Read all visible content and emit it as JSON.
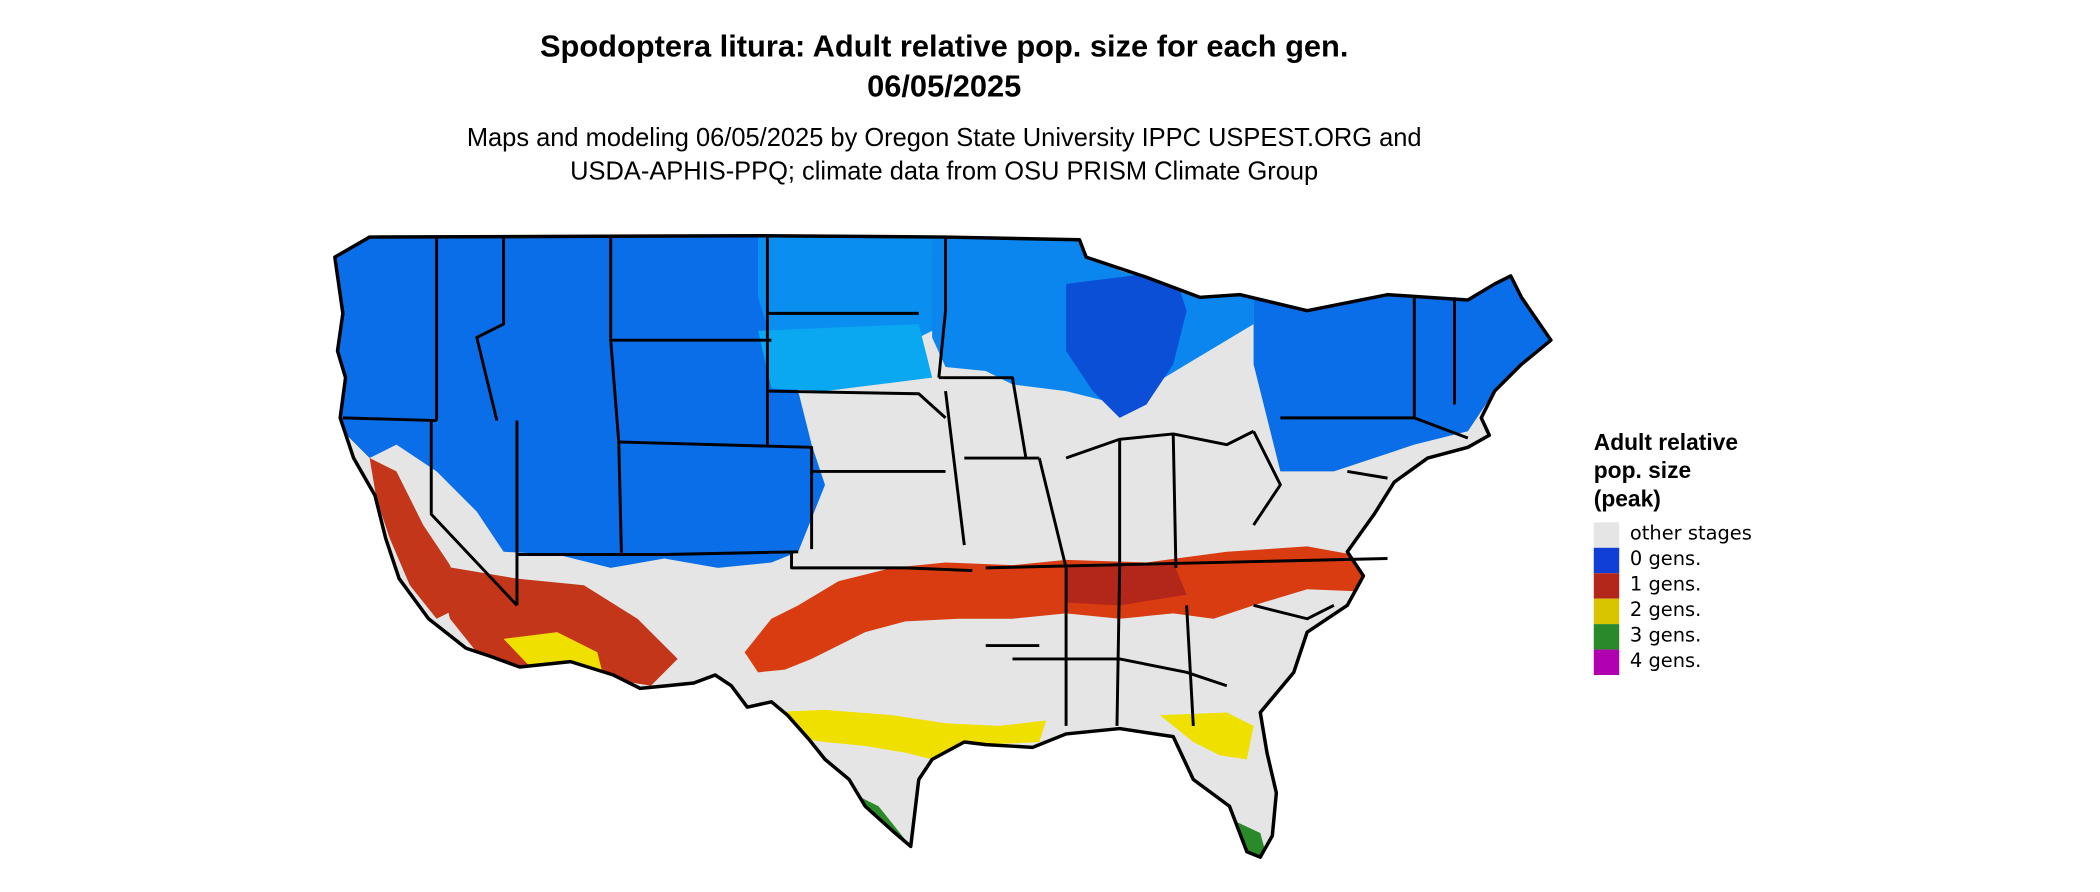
{
  "title_lines": [
    "Spodoptera litura: Adult relative pop. size for each gen.",
    "06/05/2025"
  ],
  "subtitle_lines": [
    "Maps and modeling 06/05/2025 by Oregon State University IPPC USPEST.ORG and",
    "USDA-APHIS-PPQ; climate data from OSU PRISM Climate Group"
  ],
  "legend": {
    "title_lines": [
      "Adult relative",
      "pop. size",
      "(peak)"
    ],
    "items": [
      {
        "label": "other stages",
        "color": "#e5e5e5"
      },
      {
        "label": "0 gens.",
        "color": "#0f3fd6"
      },
      {
        "label": "1 gens.",
        "color": "#b3261a"
      },
      {
        "label": "2 gens.",
        "color": "#d9c400"
      },
      {
        "label": "3 gens.",
        "color": "#2a8a2a"
      },
      {
        "label": "4 gens.",
        "color": "#b000b0"
      }
    ]
  },
  "map_colors": {
    "background": "#e5e5e5",
    "zero_gen_dark": "#0d3fd8",
    "zero_gen_mid": "#0a6ee8",
    "zero_gen_light": "#0aa8f0",
    "one_gen_dark": "#b3261a",
    "one_gen_orange": "#e04a10",
    "two_gen": "#f0e000",
    "three_gen": "#2a8a2a",
    "borders": "#000000"
  }
}
